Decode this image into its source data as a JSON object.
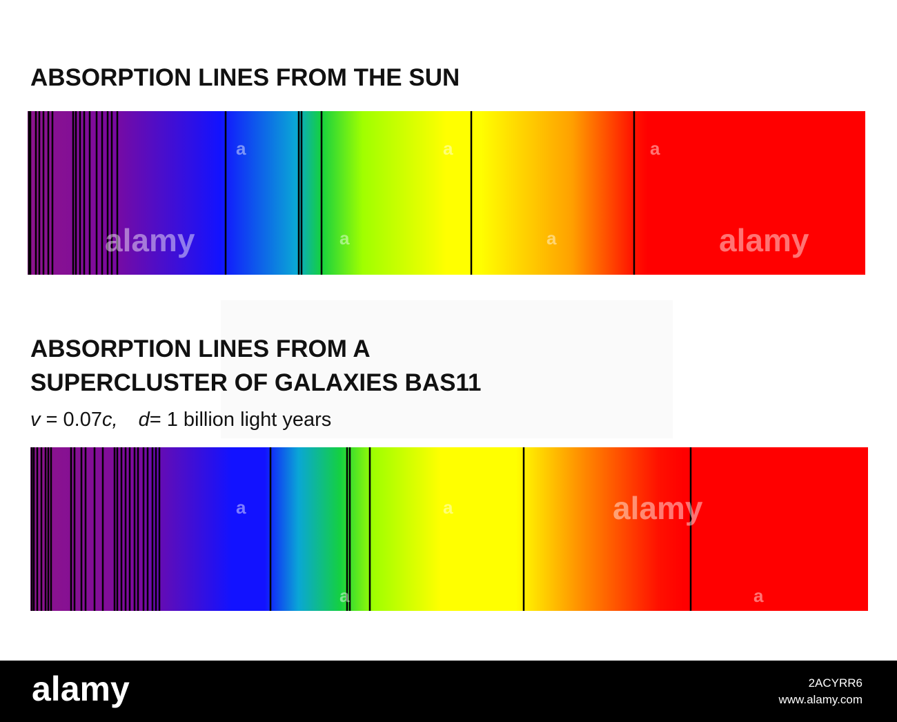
{
  "header": {
    "title": "ABSORPTION LINES FROM THE SUN"
  },
  "second": {
    "title_lines": [
      "ABSORPTION LINES FROM A",
      "SUPERCLUSTER OF GALAXIES BAS11"
    ],
    "subtitle_parts": [
      "v",
      " = 0.07",
      "c",
      ",",
      "d",
      "= 1 billion light years"
    ]
  },
  "watermark": {
    "brand": "alamy",
    "letter": "a",
    "image_id": "2ACYRR6",
    "url": "www.alamy.com"
  }
}
